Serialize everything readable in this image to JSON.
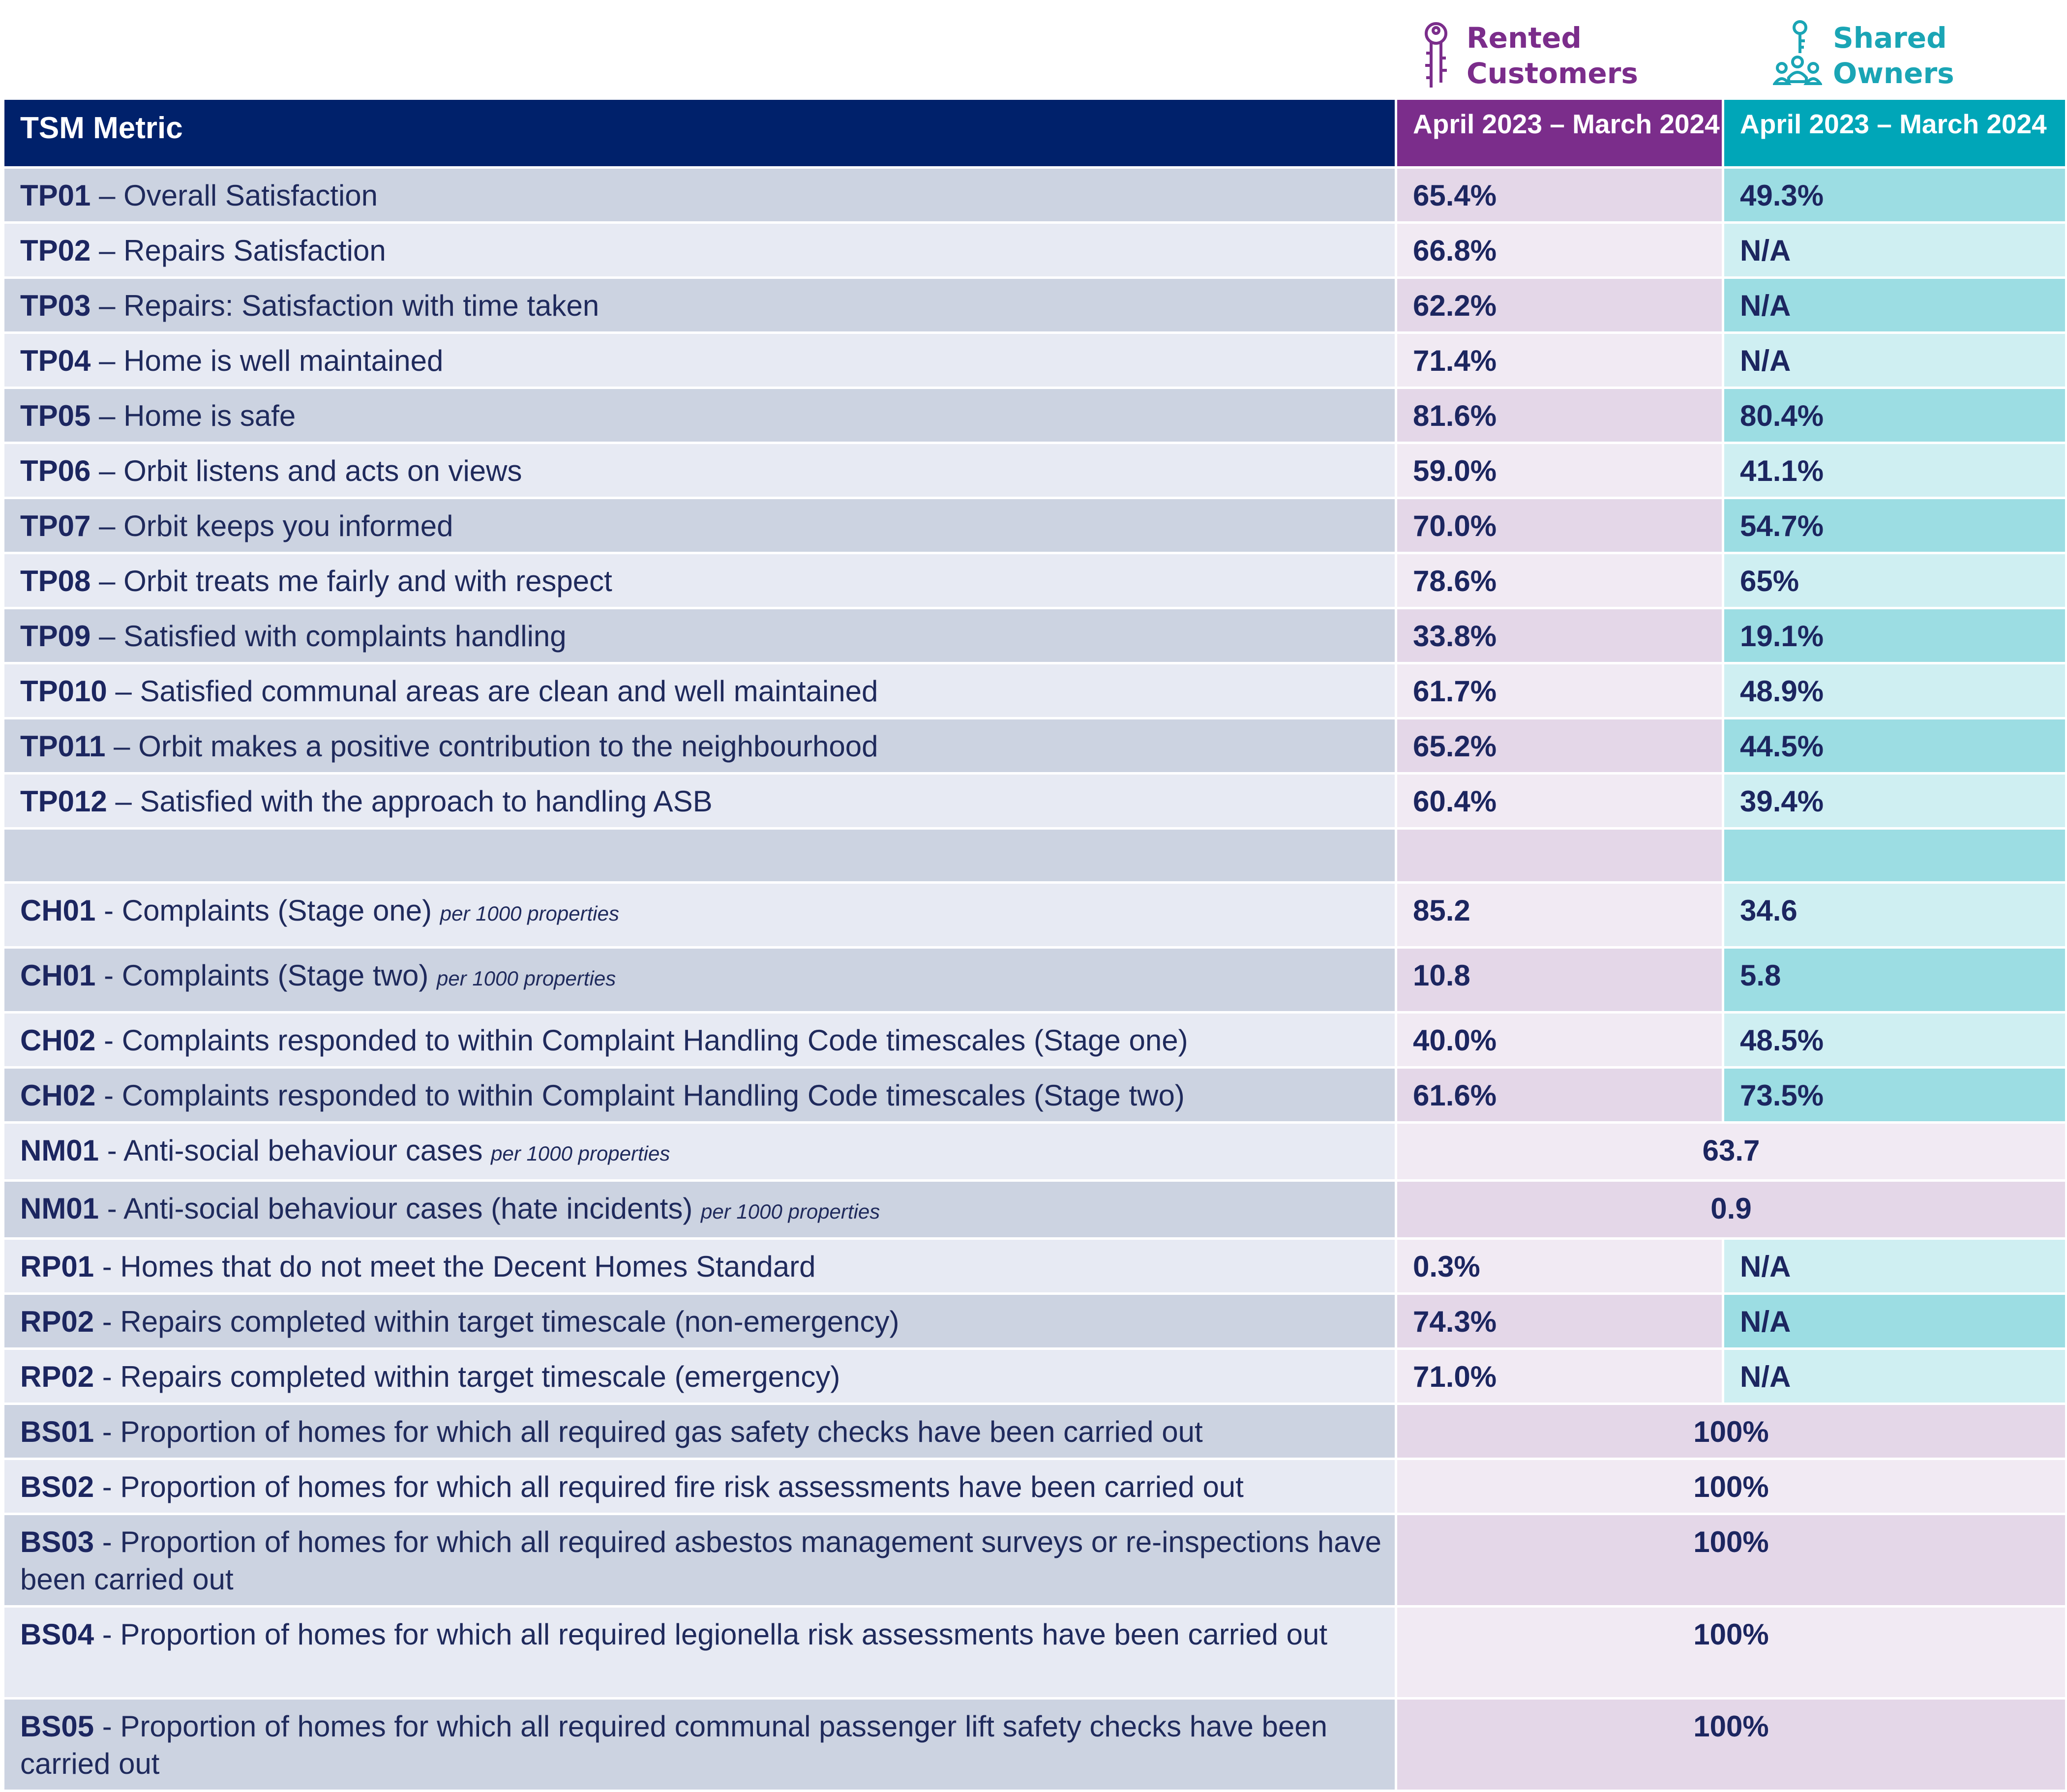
{
  "legend": {
    "rented": {
      "line1": "Rented",
      "line2": "Customers",
      "icon": "keys-icon",
      "color": "#7b2d8b"
    },
    "shared": {
      "line1": "Shared",
      "line2": "Owners",
      "icon": "shared-owners-icon",
      "color": "#1aa5b5"
    }
  },
  "header": {
    "metric": "TSM Metric",
    "rented_period": "April 2023 – March 2024",
    "shared_period": "April 2023 – March 2024"
  },
  "rows": [
    {
      "code": "TP01",
      "sep": " – ",
      "text": "Overall Satisfaction",
      "note": "",
      "rented": "65.4%",
      "shared": "49.3%"
    },
    {
      "code": "TP02",
      "sep": " – ",
      "text": "Repairs Satisfaction",
      "note": "",
      "rented": "66.8%",
      "shared": "N/A"
    },
    {
      "code": "TP03",
      "sep": " – ",
      "text": "Repairs: Satisfaction with time taken",
      "note": "",
      "rented": "62.2%",
      "shared": "N/A"
    },
    {
      "code": "TP04",
      "sep": " – ",
      "text": "Home is well maintained",
      "note": "",
      "rented": "71.4%",
      "shared": "N/A"
    },
    {
      "code": "TP05",
      "sep": " – ",
      "text": "Home is safe",
      "note": "",
      "rented": "81.6%",
      "shared": "80.4%"
    },
    {
      "code": "TP06",
      "sep": " – ",
      "text": "Orbit listens and acts on views",
      "note": "",
      "rented": "59.0%",
      "shared": "41.1%"
    },
    {
      "code": "TP07",
      "sep": " – ",
      "text": "Orbit keeps you informed",
      "note": "",
      "rented": "70.0%",
      "shared": "54.7%"
    },
    {
      "code": "TP08",
      "sep": " – ",
      "text": "Orbit treats me fairly and with respect",
      "note": "",
      "rented": "78.6%",
      "shared": "65%"
    },
    {
      "code": "TP09",
      "sep": " – ",
      "text": "Satisfied with complaints handling",
      "note": "",
      "rented": "33.8%",
      "shared": "19.1%"
    },
    {
      "code": "TP010",
      "sep": " – ",
      "text": "Satisfied communal areas are clean and well maintained",
      "note": "",
      "rented": "61.7%",
      "shared": "48.9%"
    },
    {
      "code": "TP011",
      "sep": " – ",
      "text": "Orbit makes a positive contribution to the neighbourhood",
      "note": "",
      "rented": "65.2%",
      "shared": "44.5%"
    },
    {
      "code": "TP012",
      "sep": " – ",
      "text": "Satisfied with the approach to handling ASB",
      "note": "",
      "rented": "60.4%",
      "shared": "39.4%"
    },
    {
      "code": "",
      "sep": "",
      "text": "",
      "note": "",
      "rented": "",
      "shared": ""
    },
    {
      "code": "CH01",
      "sep": " - ",
      "text": "Complaints (Stage one)",
      "note": "per 1000 properties",
      "rented": "85.2",
      "shared": "34.6"
    },
    {
      "code": "CH01",
      "sep": " - ",
      "text": "Complaints (Stage two)",
      "note": "per 1000 properties",
      "rented": "10.8",
      "shared": "5.8"
    },
    {
      "code": "CH02",
      "sep": " - ",
      "text": "Complaints responded to within Complaint Handling Code timescales (Stage one)",
      "note": "",
      "rented": "40.0%",
      "shared": "48.5%"
    },
    {
      "code": "CH02",
      "sep": " - ",
      "text": "Complaints responded to within Complaint Handling Code timescales (Stage two)",
      "note": "",
      "rented": "61.6%",
      "shared": "73.5%"
    },
    {
      "code": "NM01",
      "sep": " - ",
      "text": "Anti-social behaviour cases",
      "note": "per 1000 properties",
      "merged": "63.7"
    },
    {
      "code": "NM01",
      "sep": " - ",
      "text": "Anti-social behaviour cases (hate incidents)",
      "note": "per 1000 properties",
      "merged": "0.9"
    },
    {
      "code": "RP01",
      "sep": " - ",
      "text": "Homes that do not meet the Decent Homes Standard",
      "note": "",
      "rented": "0.3%",
      "shared": "N/A"
    },
    {
      "code": "RP02",
      "sep": " - ",
      "text": "Repairs completed within target timescale (non-emergency)",
      "note": "",
      "rented": "74.3%",
      "shared": "N/A"
    },
    {
      "code": "RP02",
      "sep": " - ",
      "text": "Repairs completed within target timescale (emergency)",
      "note": "",
      "rented": "71.0%",
      "shared": "N/A"
    },
    {
      "code": "BS01",
      "sep": " - ",
      "text": "Proportion of homes for which all required gas safety checks have been carried out",
      "note": "",
      "merged": "100%"
    },
    {
      "code": "BS02",
      "sep": " - ",
      "text": "Proportion of homes for which all required fire risk assessments have been carried out",
      "note": "",
      "merged": "100%"
    },
    {
      "code": "BS03",
      "sep": " - ",
      "text": "Proportion of homes for which all required asbestos management surveys or re-inspections have been carried out",
      "note": "",
      "merged": "100%"
    },
    {
      "code": "BS04",
      "sep": " - ",
      "text": "Proportion of homes for which all required legionella risk assessments have been carried out",
      "note": "",
      "merged": "100%"
    },
    {
      "code": "BS05",
      "sep": " - ",
      "text": "Proportion of homes for which all required communal passenger lift safety checks have been carried out",
      "note": "",
      "merged": "100%"
    }
  ]
}
